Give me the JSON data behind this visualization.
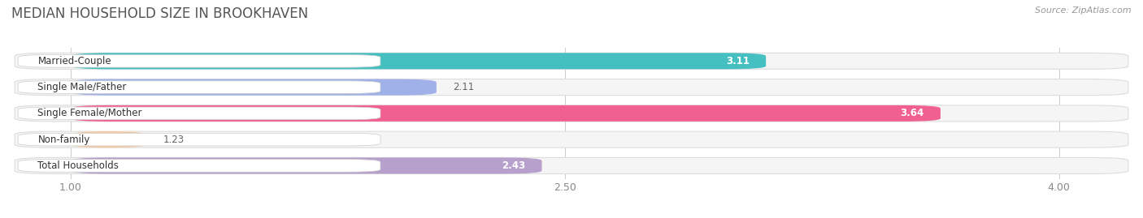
{
  "title": "MEDIAN HOUSEHOLD SIZE IN BROOKHAVEN",
  "source": "Source: ZipAtlas.com",
  "categories": [
    "Married-Couple",
    "Single Male/Father",
    "Single Female/Mother",
    "Non-family",
    "Total Households"
  ],
  "values": [
    3.11,
    2.11,
    3.64,
    1.23,
    2.43
  ],
  "colors": [
    "#45bfbf",
    "#a0b0e8",
    "#f06090",
    "#f5c8a0",
    "#b8a0cc"
  ],
  "x_min": 1.0,
  "x_max": 4.0,
  "xlim_left": 0.82,
  "xlim_right": 4.22,
  "xticks": [
    1.0,
    2.5,
    4.0
  ],
  "xtick_labels": [
    "1.00",
    "2.50",
    "4.00"
  ],
  "bar_height": 0.62,
  "background_color": "#ffffff",
  "row_bg_color": "#f5f5f5",
  "label_fontsize": 8.5,
  "value_fontsize": 8.5,
  "title_fontsize": 12
}
